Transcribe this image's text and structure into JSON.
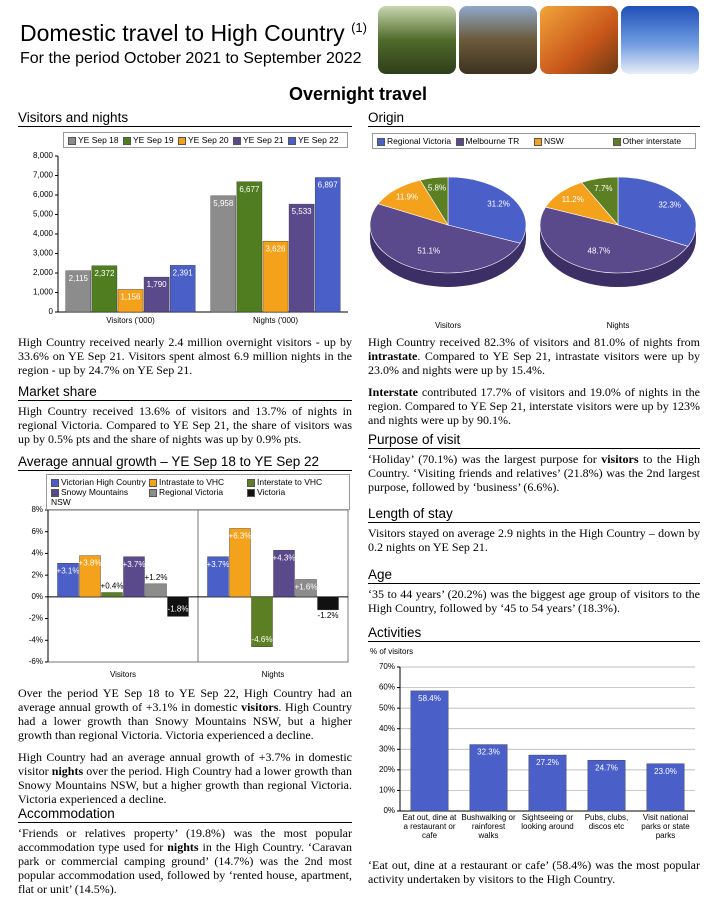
{
  "header": {
    "title": "Domestic travel to High Country",
    "title_note": "(1)",
    "subtitle": "For the period October 2021 to September 2022"
  },
  "section_title": "Overnight travel",
  "sections": [
    {
      "heading": "Visitors and nights",
      "paragraphs": [
        [
          "High Country received nearly 2.4 million overnight visitors - up by 33.6% on YE Sep 21. Visitors spent almost 6.9 million nights in the region - up by 24.7% on YE Sep 21."
        ]
      ]
    },
    {
      "heading": "Market share",
      "paragraphs": [
        [
          "High Country received 13.6% of visitors and 13.7% of nights in regional Victoria. Compared to YE Sep 21, the share of visitors was up by 0.5% pts and the share of nights was up by 0.9% pts."
        ]
      ]
    },
    {
      "heading": "Average annual growth – YE Sep 18 to YE Sep 22",
      "paragraphs": [
        [
          "Over the period YE Sep 18 to YE Sep 22, High Country had an average annual growth of +3.1% in domestic ",
          {
            "bold": "visitors"
          },
          ". High Country had a lower growth than Snowy Mountains NSW, but a higher growth than regional Victoria. Victoria experienced a decline."
        ],
        [
          "High Country had an average annual growth of +3.7% in domestic visitor ",
          {
            "bold": "nights"
          },
          " over the period. High Country had a lower growth than Snowy Mountains NSW, but a higher growth than regional Victoria. Victoria experienced a decline."
        ]
      ]
    },
    {
      "heading": "Accommodation",
      "paragraphs": [
        [
          "‘Friends or relatives property’ (19.8%) was the most popular accommodation type used for ",
          {
            "bold": "nights"
          },
          " in the High Country. ‘Caravan park or commercial camping ground’ (14.7%) was the 2nd most popular accommodation used, followed by ‘rented house, apartment, flat or unit’ (14.5%)."
        ]
      ]
    },
    {
      "heading": "Origin",
      "paragraphs": [
        [
          "High Country received 82.3% of visitors and 81.0% of nights from ",
          {
            "bold": "intrastate"
          },
          ". Compared to YE Sep 21, intrastate visitors were up by 23.0% and nights were up by 15.4%."
        ],
        [
          {
            "bold": "Interstate"
          },
          " contributed 17.7% of visitors and 19.0% of nights in the region. Compared to YE Sep 21, interstate visitors were up by 123% and nights were up by 90.1%."
        ]
      ]
    },
    {
      "heading": "Purpose of visit",
      "paragraphs": [
        [
          "‘Holiday’ (70.1%) was the largest purpose for ",
          {
            "bold": "visitors"
          },
          " to the High Country. ‘Visiting friends and relatives’ (21.8%) was the 2nd largest purpose, followed by ‘business’ (6.6%)."
        ]
      ]
    },
    {
      "heading": "Length of stay",
      "paragraphs": [
        [
          "Visitors stayed on average 2.9 nights in the High Country – down by 0.2 nights on YE Sep 21."
        ]
      ]
    },
    {
      "heading": "Age",
      "paragraphs": [
        [
          "‘35 to 44 years’ (20.2%) was the biggest age group of visitors to the High Country, followed by ‘45 to 54 years’ (18.3%)."
        ]
      ]
    },
    {
      "heading": "Activities",
      "paragraphs": [
        [
          "‘Eat out, dine at a restaurant or cafe’ (58.4%) was the most popular activity undertaken by visitors to the High Country."
        ]
      ]
    }
  ],
  "chart_data": [
    {
      "type": "bar",
      "categories": [
        "Visitors ('000)",
        "Nights ('000)"
      ],
      "series": [
        {
          "name": "YE Sep 18",
          "color": "#8c8c8c",
          "values": [
            2115,
            5958
          ],
          "value_labels": [
            "2,115",
            "5,958"
          ]
        },
        {
          "name": "YE Sep 19",
          "color": "#4f7d1f",
          "values": [
            2372,
            6677
          ],
          "value_labels": [
            "2,372",
            "6,677"
          ]
        },
        {
          "name": "YE Sep 20",
          "color": "#f4a21b",
          "values": [
            1156,
            3626
          ],
          "value_labels": [
            "1,156",
            "3,626"
          ]
        },
        {
          "name": "YE Sep 21",
          "color": "#5a4a8c",
          "values": [
            1790,
            5533
          ],
          "value_labels": [
            "1,790",
            "5,533"
          ]
        },
        {
          "name": "YE Sep 22",
          "color": "#4a5fc8",
          "values": [
            2391,
            6897
          ],
          "value_labels": [
            "2,391",
            "6,897"
          ]
        }
      ],
      "ylim": [
        0,
        8000
      ],
      "yticks": [
        0,
        {
          "value": 1000,
          "label": "1,000"
        },
        {
          "value": 2000,
          "label": "2,000"
        },
        {
          "value": 3000,
          "label": "3,000"
        },
        {
          "value": 4000,
          "label": "4,000"
        },
        {
          "value": 5000,
          "label": "5,000"
        },
        {
          "value": 6000,
          "label": "6,000"
        },
        {
          "value": 7000,
          "label": "7,000"
        },
        {
          "value": 8000,
          "label": "8,000"
        }
      ],
      "grid": false
    },
    {
      "type": "pie",
      "categories": [
        "Regional Victoria",
        "Melbourne TR",
        "NSW",
        "Other interstate"
      ],
      "colors": [
        "#4a5fc8",
        "#5a4a8c",
        "#f4a21b",
        "#5b7f22"
      ],
      "series": [
        {
          "name": "Visitors",
          "values": [
            31.2,
            51.1,
            11.9,
            5.8
          ],
          "value_labels": [
            "31.2%",
            "51.1%",
            "11.9%",
            "5.8%"
          ]
        },
        {
          "name": "Nights",
          "values": [
            32.3,
            48.7,
            11.2,
            7.7
          ],
          "value_labels": [
            "32.3%",
            "48.7%",
            "11.2%",
            "7.7%"
          ]
        }
      ]
    },
    {
      "type": "bar",
      "categories": [
        "Visitors",
        "Nights"
      ],
      "series": [
        {
          "name": "Victorian High Country",
          "color": "#4a5fc8",
          "values": [
            3.1,
            3.7
          ],
          "value_labels": [
            "+3.1%",
            "+3.7%"
          ]
        },
        {
          "name": "Intrastate to VHC",
          "color": "#f4a21b",
          "values": [
            3.8,
            6.3
          ],
          "value_labels": [
            "+3.8%",
            "+6.3%"
          ]
        },
        {
          "name": "Interstate to VHC",
          "color": "#5b7f22",
          "values": [
            0.4,
            -4.6
          ],
          "value_labels": [
            "+0.4%",
            "-4.6%"
          ]
        },
        {
          "name": "Snowy Mountains NSW",
          "color": "#5a4a8c",
          "values": [
            3.7,
            4.3
          ],
          "value_labels": [
            "+3.7%",
            "+4.3%"
          ]
        },
        {
          "name": "Regional Victoria",
          "color": "#8c8c8c",
          "values": [
            1.2,
            1.6
          ],
          "value_labels": [
            "+1.2%",
            "+1.6%"
          ]
        },
        {
          "name": "Victoria",
          "color": "#111111",
          "values": [
            -1.8,
            -1.2
          ],
          "value_labels": [
            "-1.8%",
            "-1.2%"
          ]
        }
      ],
      "ylim": [
        -6,
        8
      ],
      "yticks": [
        {
          "value": 8,
          "label": "8%"
        },
        {
          "value": 6,
          "label": "6%"
        },
        {
          "value": 4,
          "label": "4%"
        },
        {
          "value": 2,
          "label": "2%"
        },
        {
          "value": 0,
          "label": "0%"
        },
        {
          "value": -2,
          "label": "-2%"
        },
        {
          "value": -4,
          "label": "-4%"
        },
        {
          "value": -6,
          "label": "-6%"
        }
      ],
      "grid": false
    },
    {
      "type": "bar",
      "y_label": "% of visitors",
      "categories": [
        "Eat out, dine at a restaurant or cafe",
        "Bushwalking or rainforest walks",
        "Sightseeing or looking around",
        "Pubs, clubs, discos etc",
        "Visit national parks or state parks"
      ],
      "values": [
        58.4,
        32.3,
        27.2,
        24.7,
        23.0
      ],
      "value_labels": [
        "58.4%",
        "32.3%",
        "27.2%",
        "24.7%",
        "23.0%"
      ],
      "color": "#4a5fc8",
      "ylim": [
        0,
        70
      ],
      "yticks": [
        {
          "value": 0,
          "label": "0%"
        },
        {
          "value": 10,
          "label": "10%"
        },
        {
          "value": 20,
          "label": "20%"
        },
        {
          "value": 30,
          "label": "30%"
        },
        {
          "value": 40,
          "label": "40%"
        },
        {
          "value": 50,
          "label": "50%"
        },
        {
          "value": 60,
          "label": "60%"
        },
        {
          "value": 70,
          "label": "70%"
        }
      ],
      "grid": true
    }
  ]
}
